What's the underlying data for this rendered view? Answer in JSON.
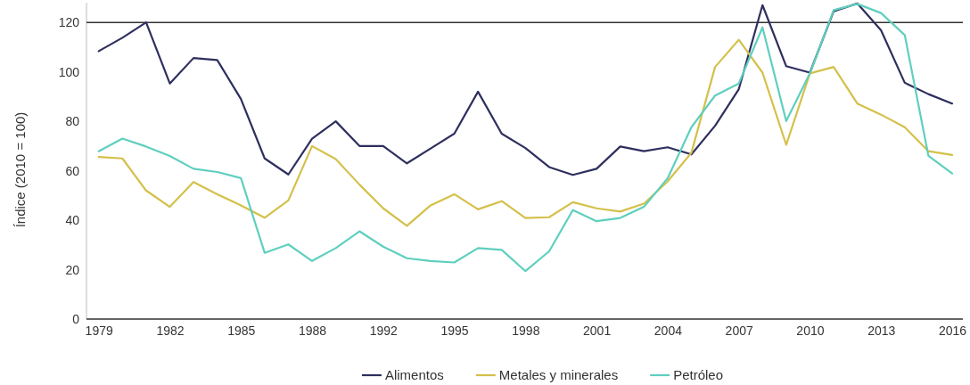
{
  "chart_data": {
    "type": "line",
    "ylabel": "Índice (2010 = 100)",
    "categories": [
      "1979",
      null,
      null,
      "1982",
      null,
      null,
      "1985",
      null,
      null,
      "1988",
      null,
      null,
      "1992",
      null,
      null,
      "1995",
      null,
      null,
      "1998",
      null,
      null,
      "2001",
      null,
      null,
      "2004",
      null,
      null,
      "2007",
      null,
      null,
      "2010",
      null,
      null,
      "2013",
      null,
      null,
      "2016"
    ],
    "series": [
      {
        "name": "Alimentos",
        "color": "#2e2f5e",
        "values": [
          108.4,
          113.8,
          120,
          95.3,
          105.6,
          104.8,
          89,
          65,
          58.5,
          73,
          80,
          70,
          70,
          63,
          69,
          75,
          92,
          75,
          69.2,
          61.5,
          58.3,
          60.8,
          69.8,
          67.9,
          69.5,
          66.6,
          78.2,
          93,
          127,
          102.3,
          99.7,
          124.5,
          127.7,
          116.8,
          95.6,
          91,
          87.2
        ]
      },
      {
        "name": "Metales y minerales",
        "color": "#d4c04a",
        "values": [
          65.6,
          65,
          52,
          45.4,
          55.4,
          50.5,
          46,
          41,
          48,
          70,
          64.7,
          54.4,
          44.8,
          37.7,
          46,
          50.5,
          44.4,
          47.7,
          40.9,
          41.2,
          47.3,
          44.8,
          43.5,
          46.7,
          55.7,
          67.3,
          102,
          113,
          99.7,
          70.5,
          99.4,
          102,
          87.2,
          82.7,
          77.6,
          67.9,
          66.4
        ]
      },
      {
        "name": "Petróleo",
        "color": "#5fcfbf",
        "values": [
          67.9,
          73,
          69.8,
          66,
          60.8,
          59.5,
          57,
          26.8,
          30.2,
          23.5,
          28.7,
          35.5,
          29.3,
          24.6,
          23.5,
          22.9,
          28.7,
          28,
          19.4,
          27.4,
          44.1,
          39.6,
          40.9,
          45.4,
          57,
          77.6,
          90.4,
          95.3,
          118,
          80.1,
          99.4,
          125,
          127.5,
          123.8,
          114.9,
          66,
          58.9
        ]
      }
    ],
    "ylim": [
      0,
      128
    ],
    "yticks": [
      0,
      20,
      40,
      60,
      80,
      100,
      120
    ],
    "ref_lines": [
      {
        "axis": "y",
        "value": 120,
        "color": "#333333"
      }
    ],
    "grid": false,
    "legend": "bottom",
    "marker": "none",
    "line_style": "solid"
  }
}
